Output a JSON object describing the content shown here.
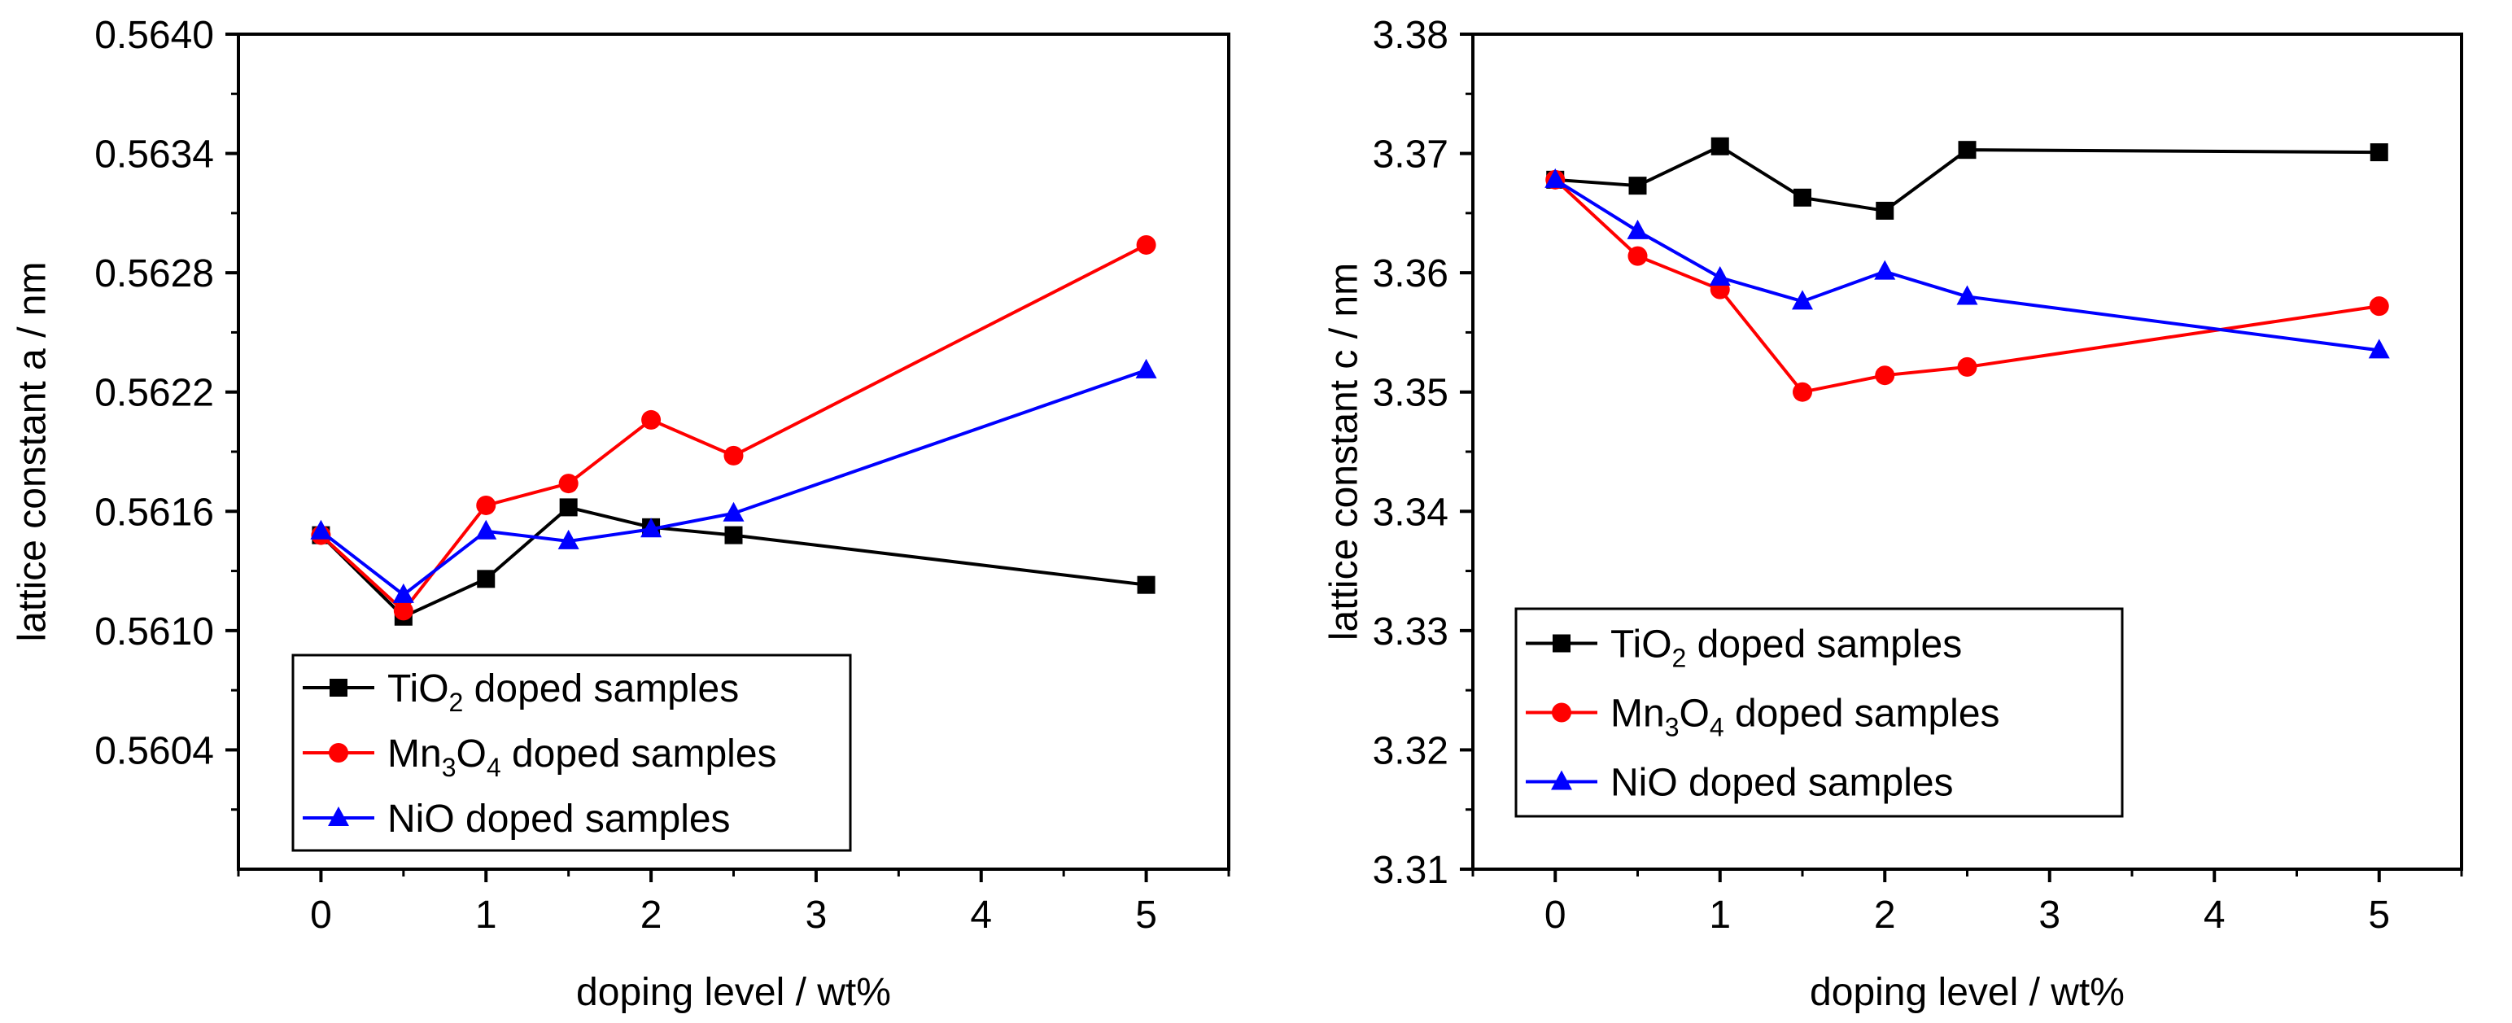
{
  "chart_data": [
    {
      "type": "line",
      "panel": "left",
      "xlabel": "doping level / wt%",
      "ylabel": "lattice constant a / nm",
      "xlim": [
        -0.5,
        5.5
      ],
      "ylim": [
        0.5598,
        0.564
      ],
      "xticks": [
        0,
        1,
        2,
        3,
        4,
        5
      ],
      "xtick_labels": [
        "0",
        "1",
        "2",
        "3",
        "4",
        "5"
      ],
      "yticks": [
        0.5604,
        0.561,
        0.5616,
        0.5622,
        0.5628,
        0.5634,
        0.564
      ],
      "ytick_labels": [
        "0.5604",
        "0.5610",
        "0.5616",
        "0.5622",
        "0.5628",
        "0.5634",
        "0.5640"
      ],
      "x": [
        0,
        0.5,
        1,
        1.5,
        2,
        2.5,
        5
      ],
      "legend_position": "lower-left",
      "series": [
        {
          "name": "TiO2 doped samples",
          "legend_main": "TiO",
          "legend_sub": "2",
          "legend_rest": " doped samples",
          "color": "#000000",
          "marker": "square",
          "values": [
            0.56148,
            0.56107,
            0.56126,
            0.56162,
            0.56152,
            0.56148,
            0.56123
          ]
        },
        {
          "name": "Mn3O4 doped samples",
          "legend_main": "Mn",
          "legend_sub": "3",
          "legend_mid": "O",
          "legend_sub2": "4",
          "legend_rest": " doped samples",
          "color": "#ff0000",
          "marker": "circle",
          "values": [
            0.56148,
            0.5611,
            0.56163,
            0.56174,
            0.56206,
            0.56188,
            0.56294
          ]
        },
        {
          "name": "NiO doped samples",
          "legend_main": "NiO doped samples",
          "color": "#0000ff",
          "marker": "triangle",
          "values": [
            0.5615,
            0.56118,
            0.5615,
            0.56145,
            0.56151,
            0.56159,
            0.56231
          ]
        }
      ]
    },
    {
      "type": "line",
      "panel": "right",
      "xlabel": "doping level / wt%",
      "ylabel": "lattice constant c / nm",
      "xlim": [
        -0.5,
        5.5
      ],
      "ylim": [
        3.31,
        3.38
      ],
      "xticks": [
        0,
        1,
        2,
        3,
        4,
        5
      ],
      "xtick_labels": [
        "0",
        "1",
        "2",
        "3",
        "4",
        "5"
      ],
      "yticks": [
        3.31,
        3.32,
        3.33,
        3.34,
        3.35,
        3.36,
        3.37,
        3.38
      ],
      "ytick_labels": [
        "3.31",
        "3.32",
        "3.33",
        "3.34",
        "3.35",
        "3.36",
        "3.37",
        "3.38"
      ],
      "x": [
        0,
        0.5,
        1,
        1.5,
        2,
        2.5,
        5
      ],
      "legend_position": "lower-left",
      "series": [
        {
          "name": "TiO2 doped samples",
          "legend_main": "TiO",
          "legend_sub": "2",
          "legend_rest": " doped samples",
          "color": "#000000",
          "marker": "square",
          "values": [
            3.3678,
            3.3673,
            3.3706,
            3.3663,
            3.3652,
            3.3703,
            3.3701
          ]
        },
        {
          "name": "Mn3O4 doped samples",
          "legend_main": "Mn",
          "legend_sub": "3",
          "legend_mid": "O",
          "legend_sub2": "4",
          "legend_rest": " doped samples",
          "color": "#ff0000",
          "marker": "circle",
          "values": [
            3.3678,
            3.3614,
            3.3586,
            3.35,
            3.3514,
            3.3521,
            3.3572
          ]
        },
        {
          "name": "NiO doped samples",
          "legend_main": "NiO doped samples",
          "color": "#0000ff",
          "marker": "triangle",
          "values": [
            3.3678,
            3.3635,
            3.3596,
            3.3576,
            3.3601,
            3.358,
            3.3535
          ]
        }
      ]
    }
  ]
}
